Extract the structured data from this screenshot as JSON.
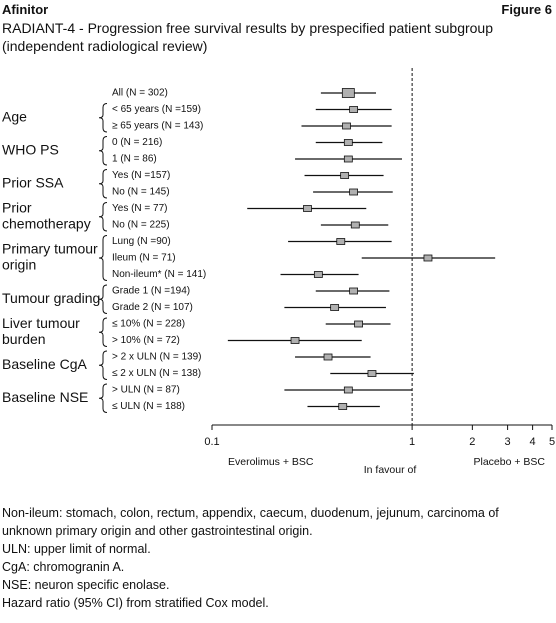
{
  "header": {
    "left": "Afinitor",
    "right": "Figure 6"
  },
  "chart_data": {
    "type": "forest",
    "title": "RADIANT-4 - Progression free survival results by prespecified patient subgroup (independent radiological review)",
    "xlim": [
      0.1,
      5
    ],
    "xticks": [
      0.1,
      1,
      2,
      3,
      4,
      5
    ],
    "log_x": true,
    "reference_line": 1,
    "x_label_left": "Everolimus + BSC",
    "x_label_center": "In favour of",
    "x_label_right": "Placebo + BSC",
    "box_color": "#b0b0b0",
    "groups": [
      {
        "rows": [
          {
            "label": "All (N = 302)",
            "hr": 0.48,
            "lower": 0.35,
            "upper": 0.66
          }
        ]
      },
      {
        "label": [
          "Age"
        ],
        "rows": [
          {
            "label": "< 65 years (N =159)",
            "hr": 0.51,
            "lower": 0.33,
            "upper": 0.79
          },
          {
            "label": "≥ 65 years (N = 143)",
            "hr": 0.47,
            "lower": 0.28,
            "upper": 0.79
          }
        ]
      },
      {
        "label": [
          "WHO PS"
        ],
        "rows": [
          {
            "label": "0 (N = 216)",
            "hr": 0.48,
            "lower": 0.33,
            "upper": 0.71
          },
          {
            "label": "1 (N = 86)",
            "hr": 0.48,
            "lower": 0.26,
            "upper": 0.89
          }
        ]
      },
      {
        "label": [
          "Prior SSA"
        ],
        "rows": [
          {
            "label": "Yes (N =157)",
            "hr": 0.46,
            "lower": 0.29,
            "upper": 0.72
          },
          {
            "label": "No (N = 145)",
            "hr": 0.51,
            "lower": 0.32,
            "upper": 0.8
          }
        ]
      },
      {
        "label": [
          "Prior",
          "chemotherapy"
        ],
        "rows": [
          {
            "label": "Yes (N = 77)",
            "hr": 0.3,
            "lower": 0.15,
            "upper": 0.59
          },
          {
            "label": "No (N = 225)",
            "hr": 0.52,
            "lower": 0.35,
            "upper": 0.76
          }
        ]
      },
      {
        "label": [
          "Primary tumour",
          "origin"
        ],
        "rows": [
          {
            "label": "Lung (N =90)",
            "hr": 0.44,
            "lower": 0.24,
            "upper": 0.79
          },
          {
            "label": "Ileum (N = 71)",
            "hr": 1.2,
            "lower": 0.56,
            "upper": 2.6
          },
          {
            "label": "Non-ileum* (N = 141)",
            "hr": 0.34,
            "lower": 0.22,
            "upper": 0.54
          }
        ]
      },
      {
        "label": [
          "Tumour grading"
        ],
        "rows": [
          {
            "label": "Grade 1 (N =194)",
            "hr": 0.51,
            "lower": 0.33,
            "upper": 0.77
          },
          {
            "label": "Grade 2 (N = 107)",
            "hr": 0.41,
            "lower": 0.23,
            "upper": 0.74
          }
        ]
      },
      {
        "label": [
          "Liver tumour",
          "burden"
        ],
        "rows": [
          {
            "label": "≤ 10% (N = 228)",
            "hr": 0.54,
            "lower": 0.37,
            "upper": 0.78
          },
          {
            "label": "> 10% (N = 72)",
            "hr": 0.26,
            "lower": 0.12,
            "upper": 0.56
          }
        ]
      },
      {
        "label": [
          "Baseline CgA"
        ],
        "rows": [
          {
            "label": "> 2 x ULN (N = 139)",
            "hr": 0.38,
            "lower": 0.26,
            "upper": 0.62
          },
          {
            "label": "≤ 2 x ULN (N = 138)",
            "hr": 0.63,
            "lower": 0.39,
            "upper": 1.02
          }
        ]
      },
      {
        "label": [
          "Baseline NSE"
        ],
        "rows": [
          {
            "label": "> ULN (N = 87)",
            "hr": 0.48,
            "lower": 0.23,
            "upper": 1.0
          },
          {
            "label": "≤ ULN (N = 188)",
            "hr": 0.45,
            "lower": 0.3,
            "upper": 0.69
          }
        ]
      }
    ]
  },
  "footnotes": [
    "Non-ileum: stomach, colon, rectum, appendix, caecum, duodenum, jejunum, carcinoma of unknown primary origin and other gastrointestinal origin.",
    "ULN: upper limit of normal.",
    "CgA: chromogranin A.",
    "NSE: neuron specific enolase.",
    "Hazard ratio (95% CI) from stratified Cox model."
  ]
}
